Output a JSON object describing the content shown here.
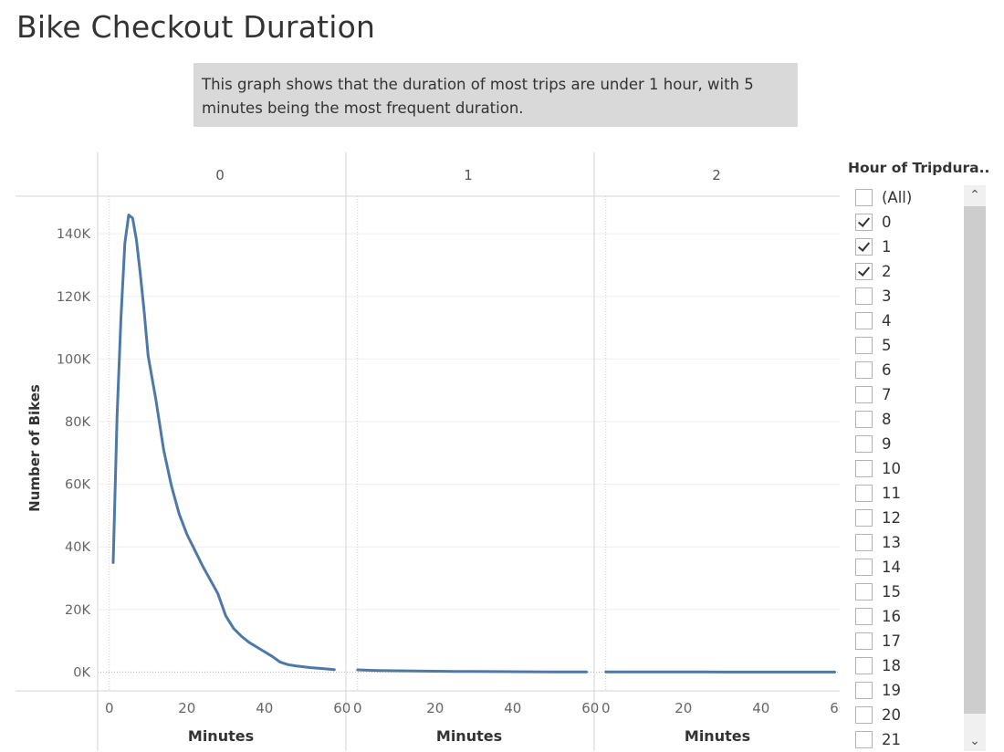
{
  "title": "Bike Checkout Duration",
  "caption": "This graph shows that the duration of most trips are under 1 hour, with 5 minutes being the most frequent duration.",
  "chart_data": {
    "type": "line",
    "title": "Bike Checkout Duration",
    "xlabel": "Minutes",
    "ylabel": "Number of Bikes",
    "xlim": [
      -3,
      61
    ],
    "ylim": [
      -6000,
      152000
    ],
    "y_ticks": [
      0,
      20000,
      40000,
      60000,
      80000,
      100000,
      120000,
      140000
    ],
    "y_tick_labels": [
      "0K",
      "20K",
      "40K",
      "60K",
      "80K",
      "100K",
      "120K",
      "140K"
    ],
    "x_ticks": [
      0,
      20,
      40,
      60
    ],
    "x_tick_labels": [
      "0",
      "20",
      "40",
      "60"
    ],
    "line_color": "#4e79a7",
    "panels": [
      {
        "header": "0",
        "x": [
          1,
          2,
          3,
          4,
          5,
          6,
          7,
          8,
          9,
          10,
          12,
          14,
          16,
          18,
          20,
          22,
          24,
          26,
          28,
          30,
          32,
          34,
          36,
          38,
          40,
          42,
          44,
          46,
          48,
          50,
          52,
          54,
          56,
          58
        ],
        "y": [
          35000,
          82000,
          113000,
          137000,
          146000,
          145000,
          138000,
          127000,
          115000,
          101000,
          87000,
          71000,
          59500,
          50500,
          44000,
          39000,
          34000,
          29500,
          25000,
          18000,
          14000,
          11500,
          9500,
          8000,
          6500,
          5000,
          3200,
          2400,
          2000,
          1700,
          1400,
          1200,
          1000,
          800
        ]
      },
      {
        "header": "1",
        "x": [
          0,
          5,
          10,
          15,
          20,
          25,
          30,
          35,
          40,
          45,
          50,
          55,
          59
        ],
        "y": [
          700,
          500,
          400,
          320,
          260,
          210,
          170,
          140,
          110,
          90,
          70,
          50,
          40
        ]
      },
      {
        "header": "2",
        "x": [
          0,
          5,
          10,
          15,
          20,
          25,
          30,
          35,
          40,
          45,
          50,
          55,
          59
        ],
        "y": [
          50,
          40,
          35,
          30,
          25,
          20,
          18,
          15,
          12,
          10,
          8,
          6,
          5
        ]
      }
    ]
  },
  "filter": {
    "title": "Hour of Tripdura..",
    "items": [
      {
        "label": "(All)",
        "checked": false
      },
      {
        "label": "0",
        "checked": true
      },
      {
        "label": "1",
        "checked": true
      },
      {
        "label": "2",
        "checked": true
      },
      {
        "label": "3",
        "checked": false
      },
      {
        "label": "4",
        "checked": false
      },
      {
        "label": "5",
        "checked": false
      },
      {
        "label": "6",
        "checked": false
      },
      {
        "label": "7",
        "checked": false
      },
      {
        "label": "8",
        "checked": false
      },
      {
        "label": "9",
        "checked": false
      },
      {
        "label": "10",
        "checked": false
      },
      {
        "label": "11",
        "checked": false
      },
      {
        "label": "12",
        "checked": false
      },
      {
        "label": "13",
        "checked": false
      },
      {
        "label": "14",
        "checked": false
      },
      {
        "label": "15",
        "checked": false
      },
      {
        "label": "16",
        "checked": false
      },
      {
        "label": "17",
        "checked": false
      },
      {
        "label": "18",
        "checked": false
      },
      {
        "label": "19",
        "checked": false
      },
      {
        "label": "20",
        "checked": false
      },
      {
        "label": "21",
        "checked": false
      }
    ],
    "scroll_up_icon": "chevron-up-icon",
    "scroll_down_icon": "chevron-down-icon"
  }
}
